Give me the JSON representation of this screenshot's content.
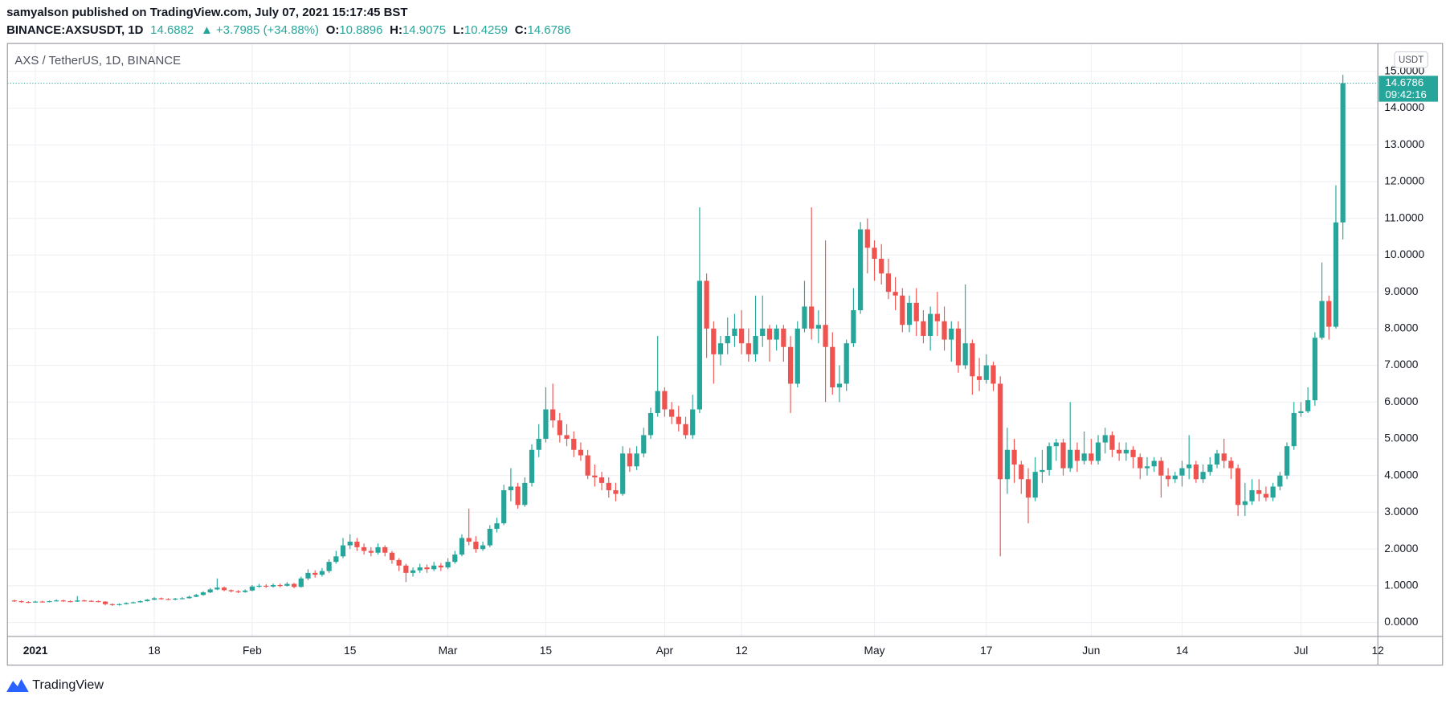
{
  "header": {
    "publisher": "samyalson published on TradingView.com, July 07, 2021 15:17:45 BST",
    "symbol": "BINANCE:AXSUSDT, 1D",
    "last": "14.6882",
    "change": "▲ +3.7985 (+34.88%)",
    "ohlc": [
      {
        "label": "O:",
        "value": "10.8896"
      },
      {
        "label": "H:",
        "value": "14.9075"
      },
      {
        "label": "L:",
        "value": "10.4259"
      },
      {
        "label": "C:",
        "value": "14.6786"
      }
    ]
  },
  "chart_data": {
    "type": "candlestick",
    "title": "AXS / TetherUS, 1D, BINANCE",
    "currency": "USDT",
    "up_color": "#26a69a",
    "down_color": "#ef5350",
    "grid": true,
    "last_price": 14.6786,
    "countdown": "09:42:16",
    "xlim": [
      "2020-12-28",
      "2021-07-12"
    ],
    "xticks": [
      {
        "value": "2021-01-01",
        "label": "2021"
      },
      {
        "value": "2021-01-18",
        "label": "18"
      },
      {
        "value": "2021-02-01",
        "label": "Feb"
      },
      {
        "value": "2021-02-15",
        "label": "15"
      },
      {
        "value": "2021-03-01",
        "label": "Mar"
      },
      {
        "value": "2021-03-15",
        "label": "15"
      },
      {
        "value": "2021-04-01",
        "label": "Apr"
      },
      {
        "value": "2021-04-12",
        "label": "12"
      },
      {
        "value": "2021-05-01",
        "label": "May"
      },
      {
        "value": "2021-05-17",
        "label": "17"
      },
      {
        "value": "2021-06-01",
        "label": "Jun"
      },
      {
        "value": "2021-06-14",
        "label": "14"
      },
      {
        "value": "2021-07-01",
        "label": "Jul"
      },
      {
        "value": "2021-07-12",
        "label": "12"
      }
    ],
    "ylim": [
      -0.38,
      15.76
    ],
    "yticks": [
      {
        "value": 0,
        "label": "0.0000"
      },
      {
        "value": 1,
        "label": "1.0000"
      },
      {
        "value": 2,
        "label": "2.0000"
      },
      {
        "value": 3,
        "label": "3.0000"
      },
      {
        "value": 4,
        "label": "4.0000"
      },
      {
        "value": 5,
        "label": "5.0000"
      },
      {
        "value": 6,
        "label": "6.0000"
      },
      {
        "value": 7,
        "label": "7.0000"
      },
      {
        "value": 8,
        "label": "8.0000"
      },
      {
        "value": 9,
        "label": "9.0000"
      },
      {
        "value": 10,
        "label": "10.0000"
      },
      {
        "value": 11,
        "label": "11.0000"
      },
      {
        "value": 12,
        "label": "12.0000"
      },
      {
        "value": 13,
        "label": "13.0000"
      },
      {
        "value": 14,
        "label": "14.0000"
      },
      {
        "value": 15,
        "label": "15.0000"
      }
    ],
    "x": [
      "2020-12-29",
      "2020-12-30",
      "2020-12-31",
      "2021-01-01",
      "2021-01-02",
      "2021-01-03",
      "2021-01-04",
      "2021-01-05",
      "2021-01-06",
      "2021-01-07",
      "2021-01-08",
      "2021-01-09",
      "2021-01-10",
      "2021-01-11",
      "2021-01-12",
      "2021-01-13",
      "2021-01-14",
      "2021-01-15",
      "2021-01-16",
      "2021-01-17",
      "2021-01-18",
      "2021-01-19",
      "2021-01-20",
      "2021-01-21",
      "2021-01-22",
      "2021-01-23",
      "2021-01-24",
      "2021-01-25",
      "2021-01-26",
      "2021-01-27",
      "2021-01-28",
      "2021-01-29",
      "2021-01-30",
      "2021-01-31",
      "2021-02-01",
      "2021-02-02",
      "2021-02-03",
      "2021-02-04",
      "2021-02-05",
      "2021-02-06",
      "2021-02-07",
      "2021-02-08",
      "2021-02-09",
      "2021-02-10",
      "2021-02-11",
      "2021-02-12",
      "2021-02-13",
      "2021-02-14",
      "2021-02-15",
      "2021-02-16",
      "2021-02-17",
      "2021-02-18",
      "2021-02-19",
      "2021-02-20",
      "2021-02-21",
      "2021-02-22",
      "2021-02-23",
      "2021-02-24",
      "2021-02-25",
      "2021-02-26",
      "2021-02-27",
      "2021-02-28",
      "2021-03-01",
      "2021-03-02",
      "2021-03-03",
      "2021-03-04",
      "2021-03-05",
      "2021-03-06",
      "2021-03-07",
      "2021-03-08",
      "2021-03-09",
      "2021-03-10",
      "2021-03-11",
      "2021-03-12",
      "2021-03-13",
      "2021-03-14",
      "2021-03-15",
      "2021-03-16",
      "2021-03-17",
      "2021-03-18",
      "2021-03-19",
      "2021-03-20",
      "2021-03-21",
      "2021-03-22",
      "2021-03-23",
      "2021-03-24",
      "2021-03-25",
      "2021-03-26",
      "2021-03-27",
      "2021-03-28",
      "2021-03-29",
      "2021-03-30",
      "2021-03-31",
      "2021-04-01",
      "2021-04-02",
      "2021-04-03",
      "2021-04-04",
      "2021-04-05",
      "2021-04-06",
      "2021-04-07",
      "2021-04-08",
      "2021-04-09",
      "2021-04-10",
      "2021-04-11",
      "2021-04-12",
      "2021-04-13",
      "2021-04-14",
      "2021-04-15",
      "2021-04-16",
      "2021-04-17",
      "2021-04-18",
      "2021-04-19",
      "2021-04-20",
      "2021-04-21",
      "2021-04-22",
      "2021-04-23",
      "2021-04-24",
      "2021-04-25",
      "2021-04-26",
      "2021-04-27",
      "2021-04-28",
      "2021-04-29",
      "2021-04-30",
      "2021-05-01",
      "2021-05-02",
      "2021-05-03",
      "2021-05-04",
      "2021-05-05",
      "2021-05-06",
      "2021-05-07",
      "2021-05-08",
      "2021-05-09",
      "2021-05-10",
      "2021-05-11",
      "2021-05-12",
      "2021-05-13",
      "2021-05-14",
      "2021-05-15",
      "2021-05-16",
      "2021-05-17",
      "2021-05-18",
      "2021-05-19",
      "2021-05-20",
      "2021-05-21",
      "2021-05-22",
      "2021-05-23",
      "2021-05-24",
      "2021-05-25",
      "2021-05-26",
      "2021-05-27",
      "2021-05-28",
      "2021-05-29",
      "2021-05-30",
      "2021-05-31",
      "2021-06-01",
      "2021-06-02",
      "2021-06-03",
      "2021-06-04",
      "2021-06-05",
      "2021-06-06",
      "2021-06-07",
      "2021-06-08",
      "2021-06-09",
      "2021-06-10",
      "2021-06-11",
      "2021-06-12",
      "2021-06-13",
      "2021-06-14",
      "2021-06-15",
      "2021-06-16",
      "2021-06-17",
      "2021-06-18",
      "2021-06-19",
      "2021-06-20",
      "2021-06-21",
      "2021-06-22",
      "2021-06-23",
      "2021-06-24",
      "2021-06-25",
      "2021-06-26",
      "2021-06-27",
      "2021-06-28",
      "2021-06-29",
      "2021-06-30",
      "2021-07-01",
      "2021-07-02",
      "2021-07-03",
      "2021-07-04",
      "2021-07-05",
      "2021-07-06",
      "2021-07-07"
    ],
    "open": [
      0.6,
      0.58,
      0.56,
      0.55,
      0.57,
      0.56,
      0.58,
      0.6,
      0.58,
      0.57,
      0.6,
      0.59,
      0.58,
      0.57,
      0.5,
      0.48,
      0.5,
      0.53,
      0.55,
      0.58,
      0.62,
      0.66,
      0.64,
      0.63,
      0.65,
      0.66,
      0.7,
      0.75,
      0.82,
      0.9,
      0.95,
      0.88,
      0.85,
      0.83,
      0.87,
      0.98,
      1.0,
      0.98,
      1.02,
      1.0,
      1.05,
      0.97,
      1.2,
      1.35,
      1.3,
      1.4,
      1.65,
      1.8,
      2.1,
      2.2,
      2.05,
      1.95,
      1.9,
      2.05,
      1.9,
      1.7,
      1.55,
      1.35,
      1.42,
      1.5,
      1.45,
      1.55,
      1.5,
      1.65,
      1.85,
      2.3,
      2.2,
      2.0,
      2.1,
      2.55,
      2.7,
      3.6,
      3.7,
      3.2,
      3.8,
      4.7,
      5.0,
      5.8,
      5.5,
      5.1,
      5.0,
      4.7,
      4.55,
      4.0,
      3.95,
      3.8,
      3.6,
      3.5,
      4.6,
      4.25,
      4.6,
      5.1,
      5.7,
      6.3,
      5.8,
      5.6,
      5.4,
      5.1,
      5.8,
      9.3,
      8.0,
      7.3,
      7.6,
      7.8,
      8.0,
      7.6,
      7.3,
      7.8,
      8.0,
      7.7,
      8.0,
      7.5,
      6.5,
      8.0,
      8.6,
      8.0,
      8.1,
      7.5,
      6.4,
      6.5,
      7.6,
      8.5,
      10.7,
      10.2,
      9.9,
      9.5,
      9.0,
      8.9,
      8.1,
      8.7,
      8.2,
      7.8,
      8.4,
      8.2,
      7.7,
      8.0,
      7.0,
      7.6,
      6.7,
      6.6,
      7.0,
      6.5,
      3.9,
      4.7,
      4.3,
      3.9,
      3.4,
      4.1,
      4.15,
      4.8,
      4.9,
      4.2,
      4.7,
      4.4,
      4.6,
      4.4,
      4.9,
      5.1,
      4.7,
      4.6,
      4.7,
      4.5,
      4.2,
      4.25,
      4.4,
      4.0,
      3.9,
      4.0,
      4.2,
      4.3,
      3.9,
      4.1,
      4.3,
      4.6,
      4.4,
      4.2,
      3.2,
      3.3,
      3.6,
      3.5,
      3.4,
      3.7,
      4.0,
      4.8,
      5.7,
      5.75,
      6.05,
      7.75,
      8.75,
      8.05,
      10.8896
    ],
    "high": [
      0.62,
      0.6,
      0.58,
      0.59,
      0.59,
      0.6,
      0.63,
      0.62,
      0.6,
      0.72,
      0.62,
      0.61,
      0.6,
      0.58,
      0.52,
      0.52,
      0.55,
      0.57,
      0.6,
      0.64,
      0.69,
      0.68,
      0.66,
      0.67,
      0.69,
      0.73,
      0.78,
      0.85,
      0.94,
      1.2,
      0.98,
      0.9,
      0.88,
      0.9,
      1.02,
      1.05,
      1.04,
      1.06,
      1.06,
      1.1,
      1.08,
      1.25,
      1.45,
      1.42,
      1.48,
      1.72,
      1.95,
      2.3,
      2.4,
      2.3,
      2.15,
      2.05,
      2.15,
      2.1,
      1.95,
      1.75,
      1.6,
      1.5,
      1.6,
      1.58,
      1.65,
      1.62,
      1.75,
      1.95,
      2.4,
      3.1,
      2.35,
      2.2,
      2.65,
      2.85,
      3.75,
      4.2,
      3.8,
      3.95,
      4.85,
      5.4,
      6.4,
      6.5,
      5.7,
      5.4,
      5.2,
      4.9,
      4.7,
      4.3,
      4.1,
      3.95,
      3.8,
      4.8,
      4.75,
      4.8,
      5.3,
      5.85,
      7.8,
      6.4,
      6.0,
      5.9,
      5.6,
      6.2,
      11.3,
      9.5,
      8.2,
      7.8,
      8.3,
      8.4,
      8.5,
      8.0,
      8.9,
      8.9,
      8.1,
      8.1,
      8.1,
      7.8,
      8.2,
      9.3,
      11.3,
      8.5,
      10.4,
      7.9,
      7.0,
      7.7,
      9.1,
      10.9,
      11.0,
      10.4,
      10.3,
      9.9,
      9.4,
      9.1,
      8.9,
      9.1,
      8.5,
      8.6,
      9.0,
      8.6,
      8.2,
      8.2,
      9.2,
      7.7,
      7.2,
      7.3,
      7.1,
      6.7,
      5.3,
      5.0,
      4.4,
      4.2,
      4.5,
      4.7,
      4.9,
      5.0,
      5.0,
      6.0,
      4.9,
      5.2,
      5.0,
      5.1,
      5.3,
      5.2,
      4.9,
      4.9,
      4.8,
      4.6,
      4.5,
      4.5,
      4.5,
      4.2,
      4.1,
      4.4,
      5.1,
      4.4,
      4.3,
      4.5,
      4.7,
      5.0,
      4.5,
      4.3,
      3.8,
      3.9,
      3.9,
      3.7,
      3.8,
      4.1,
      4.9,
      6.0,
      6.0,
      6.4,
      7.9,
      9.8,
      8.9,
      11.9,
      14.9075
    ],
    "low": [
      0.56,
      0.54,
      0.53,
      0.54,
      0.55,
      0.55,
      0.57,
      0.56,
      0.55,
      0.56,
      0.57,
      0.56,
      0.55,
      0.47,
      0.45,
      0.46,
      0.49,
      0.52,
      0.54,
      0.57,
      0.61,
      0.62,
      0.61,
      0.6,
      0.63,
      0.65,
      0.69,
      0.73,
      0.8,
      0.88,
      0.85,
      0.82,
      0.8,
      0.81,
      0.85,
      0.95,
      0.94,
      0.95,
      0.96,
      0.98,
      0.93,
      0.95,
      1.15,
      1.22,
      1.25,
      1.35,
      1.6,
      1.75,
      2.0,
      1.95,
      1.85,
      1.8,
      1.85,
      1.8,
      1.6,
      1.4,
      1.1,
      1.25,
      1.35,
      1.35,
      1.4,
      1.4,
      1.45,
      1.6,
      1.8,
      2.1,
      1.9,
      1.95,
      2.05,
      2.45,
      2.65,
      3.3,
      3.1,
      3.15,
      3.7,
      4.5,
      4.9,
      5.3,
      4.9,
      4.8,
      4.5,
      4.4,
      3.9,
      3.7,
      3.6,
      3.4,
      3.3,
      3.45,
      4.1,
      4.15,
      4.5,
      5.0,
      5.6,
      5.6,
      5.4,
      5.2,
      5.0,
      5.0,
      5.7,
      7.2,
      6.5,
      7.0,
      7.3,
      7.5,
      7.3,
      7.1,
      7.1,
      7.5,
      7.1,
      7.4,
      7.1,
      5.7,
      6.4,
      7.9,
      7.7,
      7.6,
      6.0,
      6.2,
      6.0,
      6.3,
      7.5,
      8.4,
      9.5,
      9.3,
      9.2,
      8.8,
      8.5,
      7.9,
      7.9,
      7.8,
      7.6,
      7.4,
      7.8,
      7.4,
      7.1,
      6.8,
      6.9,
      6.2,
      6.3,
      6.5,
      6.3,
      1.8,
      3.5,
      3.8,
      3.5,
      2.7,
      3.3,
      3.8,
      4.0,
      4.4,
      4.0,
      4.1,
      4.1,
      4.3,
      4.3,
      4.3,
      4.6,
      4.5,
      4.4,
      4.4,
      4.2,
      3.9,
      4.0,
      4.1,
      3.4,
      3.7,
      3.8,
      3.7,
      3.9,
      3.8,
      3.8,
      4.0,
      4.2,
      4.2,
      3.9,
      2.9,
      2.9,
      3.2,
      3.3,
      3.3,
      3.3,
      3.6,
      3.9,
      4.7,
      5.6,
      5.7,
      5.9,
      7.7,
      7.7,
      8.0,
      10.4259
    ],
    "close": [
      0.58,
      0.56,
      0.55,
      0.57,
      0.56,
      0.58,
      0.6,
      0.58,
      0.57,
      0.6,
      0.59,
      0.58,
      0.57,
      0.5,
      0.48,
      0.5,
      0.53,
      0.55,
      0.58,
      0.62,
      0.66,
      0.64,
      0.63,
      0.65,
      0.66,
      0.7,
      0.75,
      0.82,
      0.9,
      0.95,
      0.88,
      0.85,
      0.83,
      0.87,
      0.98,
      1.0,
      0.98,
      1.02,
      1.0,
      1.05,
      0.97,
      1.2,
      1.35,
      1.3,
      1.4,
      1.65,
      1.8,
      2.1,
      2.2,
      2.05,
      1.95,
      1.9,
      2.05,
      1.9,
      1.7,
      1.55,
      1.35,
      1.42,
      1.5,
      1.45,
      1.55,
      1.5,
      1.65,
      1.85,
      2.3,
      2.2,
      2.0,
      2.1,
      2.55,
      2.7,
      3.6,
      3.7,
      3.2,
      3.8,
      4.7,
      5.0,
      5.8,
      5.5,
      5.1,
      5.0,
      4.7,
      4.55,
      4.0,
      3.95,
      3.8,
      3.6,
      3.5,
      4.6,
      4.25,
      4.6,
      5.1,
      5.7,
      6.3,
      5.8,
      5.6,
      5.4,
      5.1,
      5.8,
      9.3,
      8.0,
      7.3,
      7.6,
      7.8,
      8.0,
      7.6,
      7.3,
      7.8,
      8.0,
      7.7,
      8.0,
      7.5,
      6.5,
      8.0,
      8.6,
      8.0,
      8.1,
      7.5,
      6.4,
      6.5,
      7.6,
      8.5,
      10.7,
      10.2,
      9.9,
      9.5,
      9.0,
      8.9,
      8.1,
      8.7,
      8.2,
      7.8,
      8.4,
      8.2,
      7.7,
      8.0,
      7.0,
      7.6,
      6.7,
      6.6,
      7.0,
      6.5,
      3.9,
      4.7,
      4.3,
      3.9,
      3.4,
      4.1,
      4.15,
      4.8,
      4.9,
      4.2,
      4.7,
      4.4,
      4.6,
      4.4,
      4.9,
      5.1,
      4.7,
      4.6,
      4.7,
      4.5,
      4.2,
      4.25,
      4.4,
      4.0,
      3.9,
      4.0,
      4.2,
      4.3,
      3.9,
      4.1,
      4.3,
      4.6,
      4.4,
      4.2,
      3.2,
      3.3,
      3.6,
      3.5,
      3.4,
      3.7,
      4.0,
      4.8,
      5.7,
      5.75,
      6.05,
      7.75,
      8.75,
      8.05,
      10.89,
      14.6786
    ]
  },
  "footer": {
    "logo": "TradingView"
  }
}
